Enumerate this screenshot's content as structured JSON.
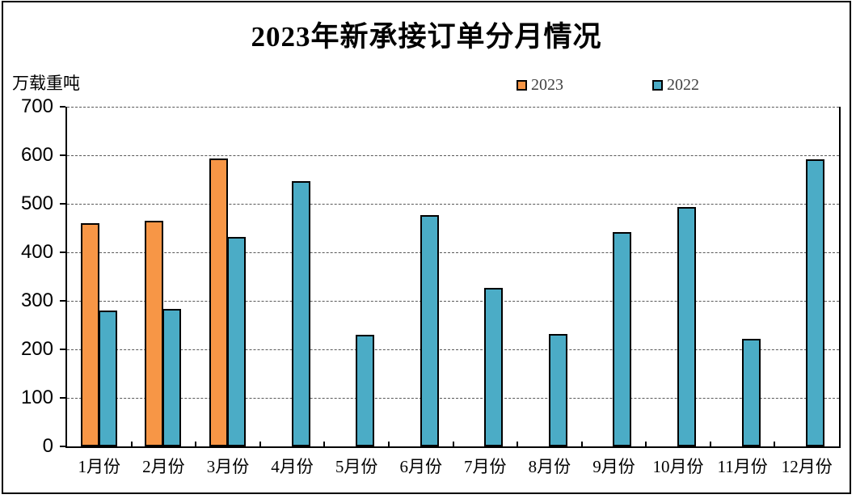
{
  "chart_data": {
    "type": "bar",
    "title": "2023年新承接订单分月情况",
    "xlabel": "",
    "ylabel": "万载重吨",
    "categories": [
      "1月份",
      "2月份",
      "3月份",
      "4月份",
      "5月份",
      "6月份",
      "7月份",
      "8月份",
      "9月份",
      "10月份",
      "11月份",
      "12月份"
    ],
    "series": [
      {
        "name": "2023",
        "color": "#F79646",
        "values": [
          460,
          465,
          593,
          null,
          null,
          null,
          null,
          null,
          null,
          null,
          null,
          null
        ]
      },
      {
        "name": "2022",
        "color": "#4BACC6",
        "values": [
          280,
          283,
          431,
          546,
          230,
          477,
          326,
          232,
          441,
          494,
          221,
          591
        ]
      }
    ],
    "ylim": [
      0,
      700
    ],
    "yticks": [
      0,
      100,
      200,
      300,
      400,
      500,
      600,
      700
    ],
    "grid": "horizontal-dashed",
    "gridline_color": "#595959",
    "bar_outline_color": "#000000",
    "axis_color": "#000000",
    "legend_position": "top"
  }
}
